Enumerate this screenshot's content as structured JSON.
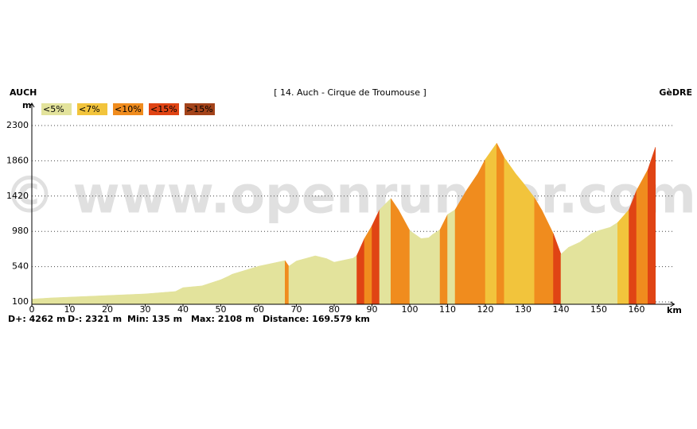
{
  "chart_data": {
    "type": "elevation-profile",
    "title": "[ 14. Auch - Cirque de Troumouse ]",
    "start_label": "AUCH",
    "end_label": "GèDRE",
    "y_label": "m",
    "x_label": "km",
    "watermark": "© www.openrunner.com",
    "legend": [
      {
        "label": "<5%",
        "color": "#e3e39c",
        "max": 5
      },
      {
        "label": "<7%",
        "color": "#f2c43c",
        "max": 7
      },
      {
        "label": "<10%",
        "color": "#f08c1e",
        "max": 10
      },
      {
        "label": "<15%",
        "color": "#e04414",
        "max": 15
      },
      {
        "label": ">15%",
        "color": "#a3431a",
        "max": 100
      }
    ],
    "x": [
      0,
      5,
      10,
      20,
      30,
      38,
      40,
      45,
      50,
      52,
      53,
      60,
      67,
      68,
      70,
      75,
      78,
      80,
      85,
      86,
      88,
      90,
      92,
      95,
      97,
      100,
      103,
      105,
      106,
      108,
      110,
      112,
      115,
      118,
      120,
      123,
      125,
      128,
      130,
      133,
      135,
      138,
      140,
      142,
      145,
      148,
      150,
      153,
      155,
      158,
      160,
      163,
      165
    ],
    "elevation": [
      135,
      150,
      160,
      180,
      200,
      230,
      278,
      300,
      377,
      420,
      445,
      545,
      615,
      545,
      610,
      675,
      640,
      595,
      645,
      680,
      890,
      1050,
      1250,
      1390,
      1250,
      990,
      890,
      900,
      940,
      1000,
      1190,
      1250,
      1490,
      1700,
      1880,
      2080,
      1900,
      1700,
      1585,
      1400,
      1240,
      950,
      695,
      780,
      845,
      950,
      990,
      1030,
      1090,
      1250,
      1490,
      1750,
      2030
    ],
    "xlim": [
      0,
      170
    ],
    "ylim": [
      100,
      2300
    ],
    "xticks": [
      0,
      10,
      20,
      30,
      40,
      50,
      60,
      70,
      80,
      90,
      100,
      110,
      120,
      130,
      140,
      150,
      160
    ],
    "yticks": [
      100,
      540,
      980,
      1420,
      1860,
      2300
    ],
    "grid": true,
    "stats": [
      "D+: 4262 m",
      "D-: 2321 m",
      "Min: 135 m",
      "Max: 2108 m",
      "Distance: 169.579 km"
    ]
  }
}
